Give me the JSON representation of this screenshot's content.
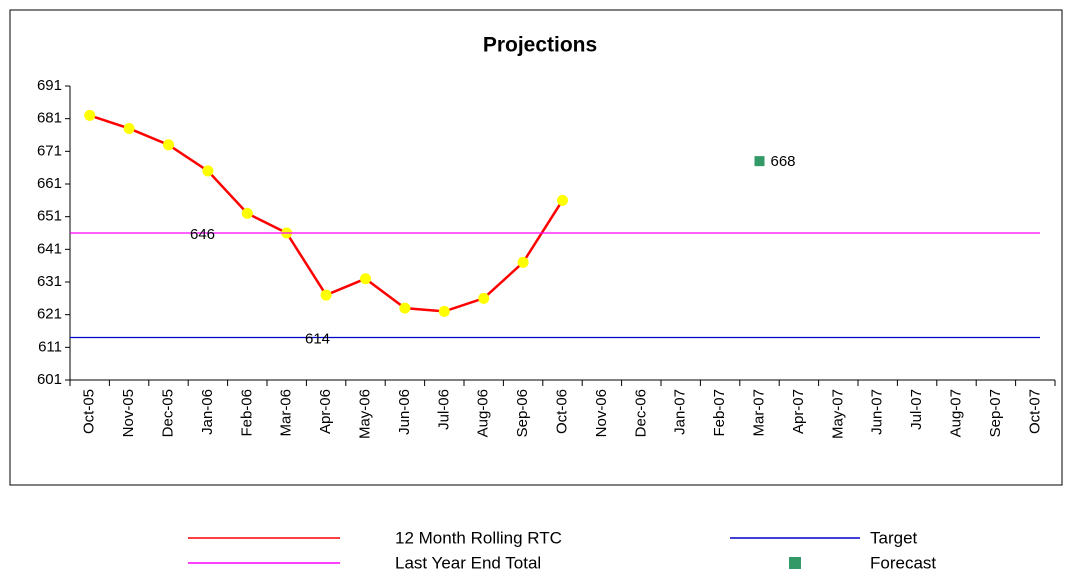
{
  "chart_data": {
    "type": "line",
    "title": "Projections",
    "categories": [
      "Oct-05",
      "Nov-05",
      "Dec-05",
      "Jan-06",
      "Feb-06",
      "Mar-06",
      "Apr-06",
      "May-06",
      "Jun-06",
      "Jul-06",
      "Aug-06",
      "Sep-06",
      "Oct-06",
      "Nov-06",
      "Dec-06",
      "Jan-07",
      "Feb-07",
      "Mar-07",
      "Apr-07",
      "May-07",
      "Jun-07",
      "Jul-07",
      "Aug-07",
      "Sep-07",
      "Oct-07"
    ],
    "ylim": [
      601,
      691
    ],
    "yticks": [
      601,
      611,
      621,
      631,
      641,
      651,
      661,
      671,
      681,
      691
    ],
    "series": [
      {
        "name": "12 Month Rolling RTC",
        "type": "line",
        "color": "#ff0000",
        "marker_color": "#ffff00",
        "values": [
          682,
          678,
          673,
          665,
          652,
          646,
          627,
          632,
          623,
          622,
          626,
          637,
          656,
          null,
          null,
          null,
          null,
          null,
          null,
          null,
          null,
          null,
          null,
          null,
          null
        ]
      },
      {
        "name": "Target",
        "type": "hline",
        "color": "#0000cc",
        "value": 614
      },
      {
        "name": "Last Year End Total",
        "type": "hline",
        "color": "#ff00ff",
        "value": 646
      },
      {
        "name": "Forecast",
        "type": "marker",
        "color": "#339966",
        "values": [
          null,
          null,
          null,
          null,
          null,
          null,
          null,
          null,
          null,
          null,
          null,
          null,
          null,
          null,
          null,
          null,
          null,
          668,
          null,
          null,
          null,
          null,
          null,
          null,
          null
        ]
      }
    ]
  }
}
